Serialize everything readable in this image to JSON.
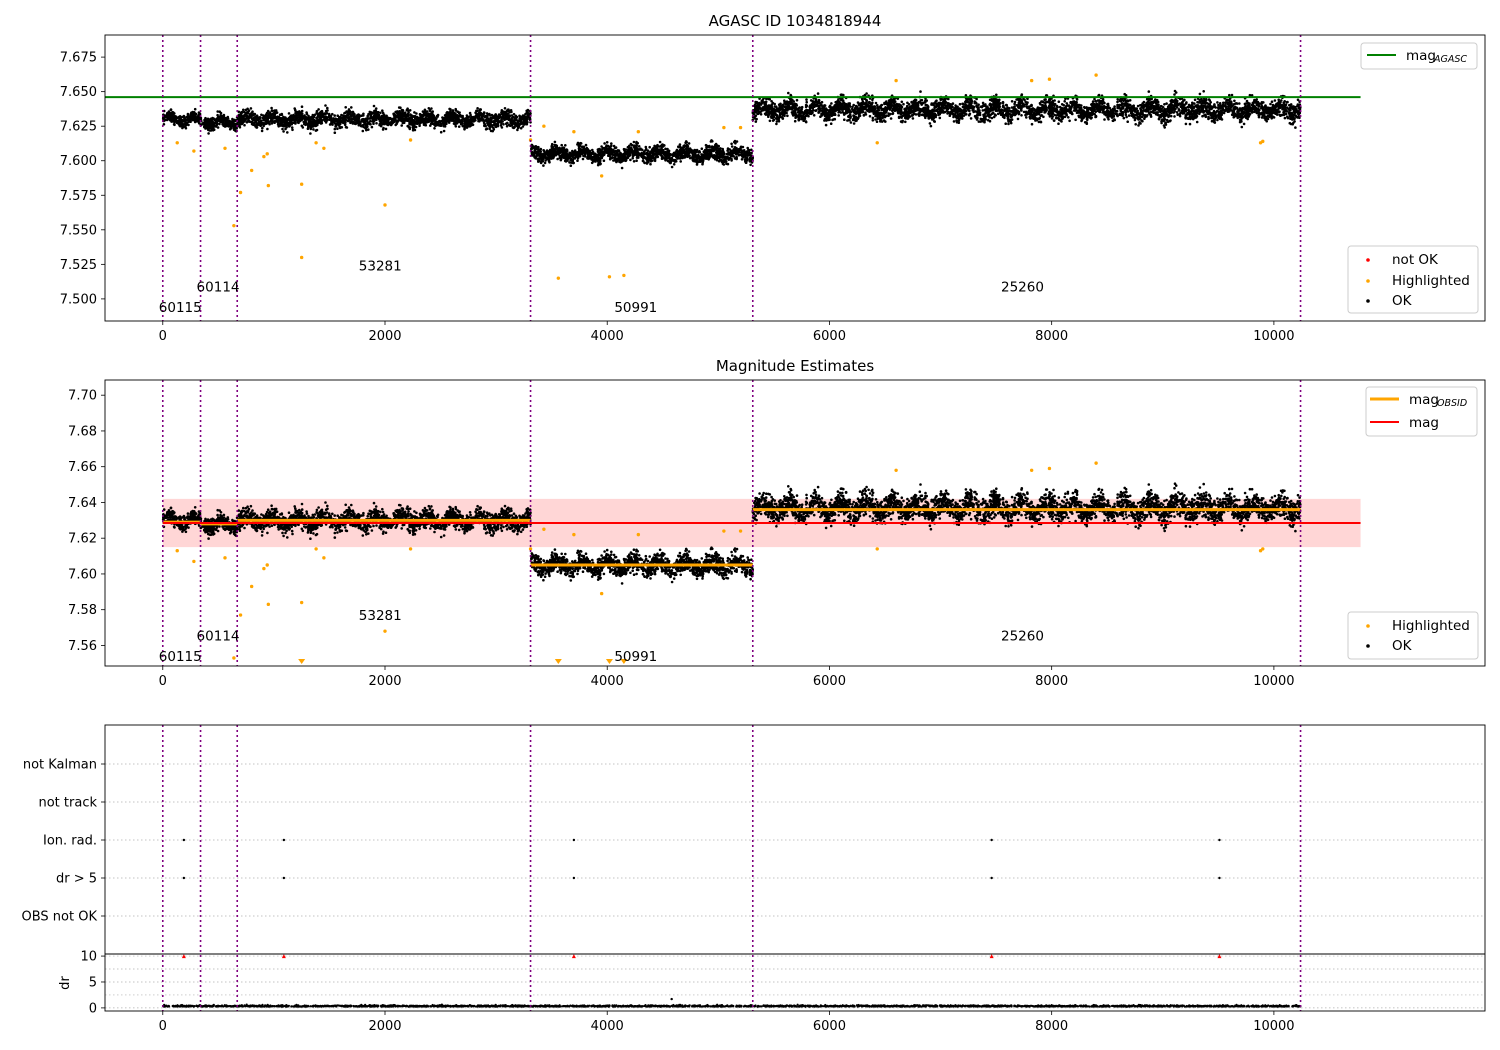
{
  "colors": {
    "ok": "#000000",
    "highlighted": "#FFA500",
    "not_ok": "#FF0000",
    "agasc": "#008000",
    "mag": "#FF0000",
    "obsid_mag": "#FFA500",
    "obs_boundary": "#800080",
    "mag_band": "#FFD6D6",
    "grid": "#B0B0B0"
  },
  "chart_data": [
    {
      "type": "scatter",
      "title": "AGASC ID 1034818944",
      "xlim": [
        -520,
        11900
      ],
      "ylim": [
        7.484,
        7.691
      ],
      "xticks": [
        0,
        2000,
        4000,
        6000,
        8000,
        10000
      ],
      "yticks": [
        7.5,
        7.525,
        7.55,
        7.575,
        7.6,
        7.625,
        7.65,
        7.675
      ],
      "ytick_labels": [
        "7.500",
        "7.525",
        "7.550",
        "7.575",
        "7.600",
        "7.625",
        "7.650",
        "7.675"
      ],
      "obs_boundaries": [
        0,
        340,
        670,
        3310,
        5310,
        10240
      ],
      "obsids": [
        {
          "label": "60115",
          "x": 0,
          "y": 7.494
        },
        {
          "label": "60114",
          "x": 340,
          "y": 7.509
        },
        {
          "label": "53281",
          "x": 1800,
          "y": 7.524
        },
        {
          "label": "50991",
          "x": 4100,
          "y": 7.494
        },
        {
          "label": "25260",
          "x": 7580,
          "y": 7.509
        }
      ],
      "ok_segments": [
        {
          "x0": 0,
          "x1": 340,
          "center": 7.63,
          "spread": 0.006
        },
        {
          "x0": 340,
          "x1": 670,
          "center": 7.628,
          "spread": 0.006
        },
        {
          "x0": 670,
          "x1": 3310,
          "center": 7.63,
          "spread": 0.007
        },
        {
          "x0": 3310,
          "x1": 5310,
          "center": 7.605,
          "spread": 0.007
        },
        {
          "x0": 5310,
          "x1": 10240,
          "center": 7.637,
          "spread": 0.009
        }
      ],
      "highlighted_points": [
        [
          130,
          7.613
        ],
        [
          280,
          7.607
        ],
        [
          560,
          7.609
        ],
        [
          640,
          7.553
        ],
        [
          700,
          7.577
        ],
        [
          800,
          7.593
        ],
        [
          910,
          7.603
        ],
        [
          940,
          7.605
        ],
        [
          950,
          7.582
        ],
        [
          1250,
          7.583
        ],
        [
          1250,
          7.53
        ],
        [
          2000,
          7.568
        ],
        [
          1380,
          7.613
        ],
        [
          1450,
          7.609
        ],
        [
          2230,
          7.615
        ],
        [
          3310,
          7.615
        ],
        [
          3430,
          7.625
        ],
        [
          3560,
          7.515
        ],
        [
          3700,
          7.621
        ],
        [
          3950,
          7.589
        ],
        [
          4020,
          7.516
        ],
        [
          4150,
          7.517
        ],
        [
          4280,
          7.621
        ],
        [
          5050,
          7.624
        ],
        [
          5200,
          7.624
        ],
        [
          6430,
          7.613
        ],
        [
          6600,
          7.658
        ],
        [
          7820,
          7.658
        ],
        [
          7980,
          7.659
        ],
        [
          8400,
          7.662
        ],
        [
          9880,
          7.613
        ],
        [
          9900,
          7.614
        ]
      ],
      "agasc_mag": {
        "value": 7.646,
        "x0": -520,
        "x1": 10780
      },
      "legend_top": [
        {
          "label": "mag",
          "subscript": "AGASC",
          "kind": "line",
          "color_key": "agasc"
        }
      ],
      "legend_bottom": [
        {
          "label": "not OK",
          "color_key": "not_ok"
        },
        {
          "label": "Highlighted",
          "color_key": "highlighted"
        },
        {
          "label": "OK",
          "color_key": "ok"
        }
      ]
    },
    {
      "type": "scatter",
      "title": "Magnitude Estimates",
      "xlim": [
        -520,
        11900
      ],
      "ylim": [
        7.5485,
        7.7085
      ],
      "xticks": [
        0,
        2000,
        4000,
        6000,
        8000,
        10000
      ],
      "yticks": [
        7.56,
        7.58,
        7.6,
        7.62,
        7.64,
        7.66,
        7.68,
        7.7
      ],
      "ytick_labels": [
        "7.56",
        "7.58",
        "7.60",
        "7.62",
        "7.64",
        "7.66",
        "7.68",
        "7.70"
      ],
      "obs_boundaries": [
        0,
        340,
        670,
        3310,
        5310,
        10240
      ],
      "obsids": [
        {
          "label": "60115",
          "x": 0,
          "y": 7.554
        },
        {
          "label": "60114",
          "x": 340,
          "y": 7.5655
        },
        {
          "label": "53281",
          "x": 1800,
          "y": 7.577
        },
        {
          "label": "50991",
          "x": 4100,
          "y": 7.554
        },
        {
          "label": "25260",
          "x": 7580,
          "y": 7.5655
        }
      ],
      "ok_segments": [
        {
          "x0": 0,
          "x1": 340,
          "center": 7.63,
          "spread": 0.006
        },
        {
          "x0": 340,
          "x1": 670,
          "center": 7.628,
          "spread": 0.006
        },
        {
          "x0": 670,
          "x1": 3310,
          "center": 7.63,
          "spread": 0.007
        },
        {
          "x0": 3310,
          "x1": 5310,
          "center": 7.605,
          "spread": 0.007
        },
        {
          "x0": 5310,
          "x1": 10240,
          "center": 7.637,
          "spread": 0.009
        }
      ],
      "highlighted_points": [
        [
          130,
          7.613
        ],
        [
          280,
          7.607
        ],
        [
          560,
          7.609
        ],
        [
          640,
          7.553
        ],
        [
          700,
          7.577
        ],
        [
          800,
          7.593
        ],
        [
          910,
          7.603
        ],
        [
          940,
          7.605
        ],
        [
          950,
          7.583
        ],
        [
          1250,
          7.584
        ],
        [
          2000,
          7.568
        ],
        [
          1380,
          7.614
        ],
        [
          1450,
          7.609
        ],
        [
          2230,
          7.614
        ],
        [
          3310,
          7.614
        ],
        [
          3430,
          7.625
        ],
        [
          3700,
          7.622
        ],
        [
          3950,
          7.589
        ],
        [
          4280,
          7.622
        ],
        [
          5050,
          7.624
        ],
        [
          5200,
          7.624
        ],
        [
          6430,
          7.614
        ],
        [
          6600,
          7.658
        ],
        [
          7820,
          7.658
        ],
        [
          7980,
          7.659
        ],
        [
          8400,
          7.662
        ],
        [
          9880,
          7.613
        ],
        [
          9900,
          7.614
        ]
      ],
      "offscale_markers": [
        1250,
        3560,
        4020,
        4150
      ],
      "obsid_mag": [
        {
          "x0": 0,
          "x1": 340,
          "value": 7.629
        },
        {
          "x0": 340,
          "x1": 670,
          "value": 7.628
        },
        {
          "x0": 670,
          "x1": 3310,
          "value": 7.63
        },
        {
          "x0": 3310,
          "x1": 5310,
          "value": 7.605
        },
        {
          "x0": 5310,
          "x1": 10240,
          "value": 7.636
        }
      ],
      "mag": {
        "value": 7.6285,
        "band": [
          7.615,
          7.642
        ],
        "x0": 0,
        "x1": 10780
      },
      "legend_top": [
        {
          "label": "mag",
          "subscript": "OBSID",
          "kind": "line",
          "color_key": "obsid_mag"
        },
        {
          "label": "mag",
          "subscript": "",
          "kind": "line",
          "color_key": "mag"
        }
      ],
      "legend_bottom": [
        {
          "label": "Highlighted",
          "color_key": "highlighted"
        },
        {
          "label": "OK",
          "color_key": "ok"
        }
      ]
    },
    {
      "type": "scatter",
      "title": "",
      "xlim": [
        -520,
        11900
      ],
      "categories": [
        "OBS not OK",
        "dr > 5",
        "Ion. rad.",
        "not track",
        "not Kalman"
      ],
      "obs_boundaries": [
        0,
        340,
        670,
        3310,
        5310,
        10240
      ],
      "flag_points": [
        {
          "category": "Ion. rad.",
          "x": [
            190,
            1090,
            3700,
            7460,
            9510
          ]
        },
        {
          "category": "dr > 5",
          "x": [
            190,
            1090,
            3700,
            7460,
            9510
          ]
        }
      ],
      "dr_panel": {
        "ylabel": "dr",
        "ylim": [
          -0.6,
          10.4
        ],
        "yticks": [
          0,
          5,
          10
        ],
        "ytick_labels": [
          "0",
          "5",
          "10"
        ],
        "clipped_at_10_x": [
          190,
          1090,
          3700,
          7460,
          9510
        ],
        "baseline": 0.25
      },
      "xticks": [
        0,
        2000,
        4000,
        6000,
        8000,
        10000
      ]
    }
  ]
}
